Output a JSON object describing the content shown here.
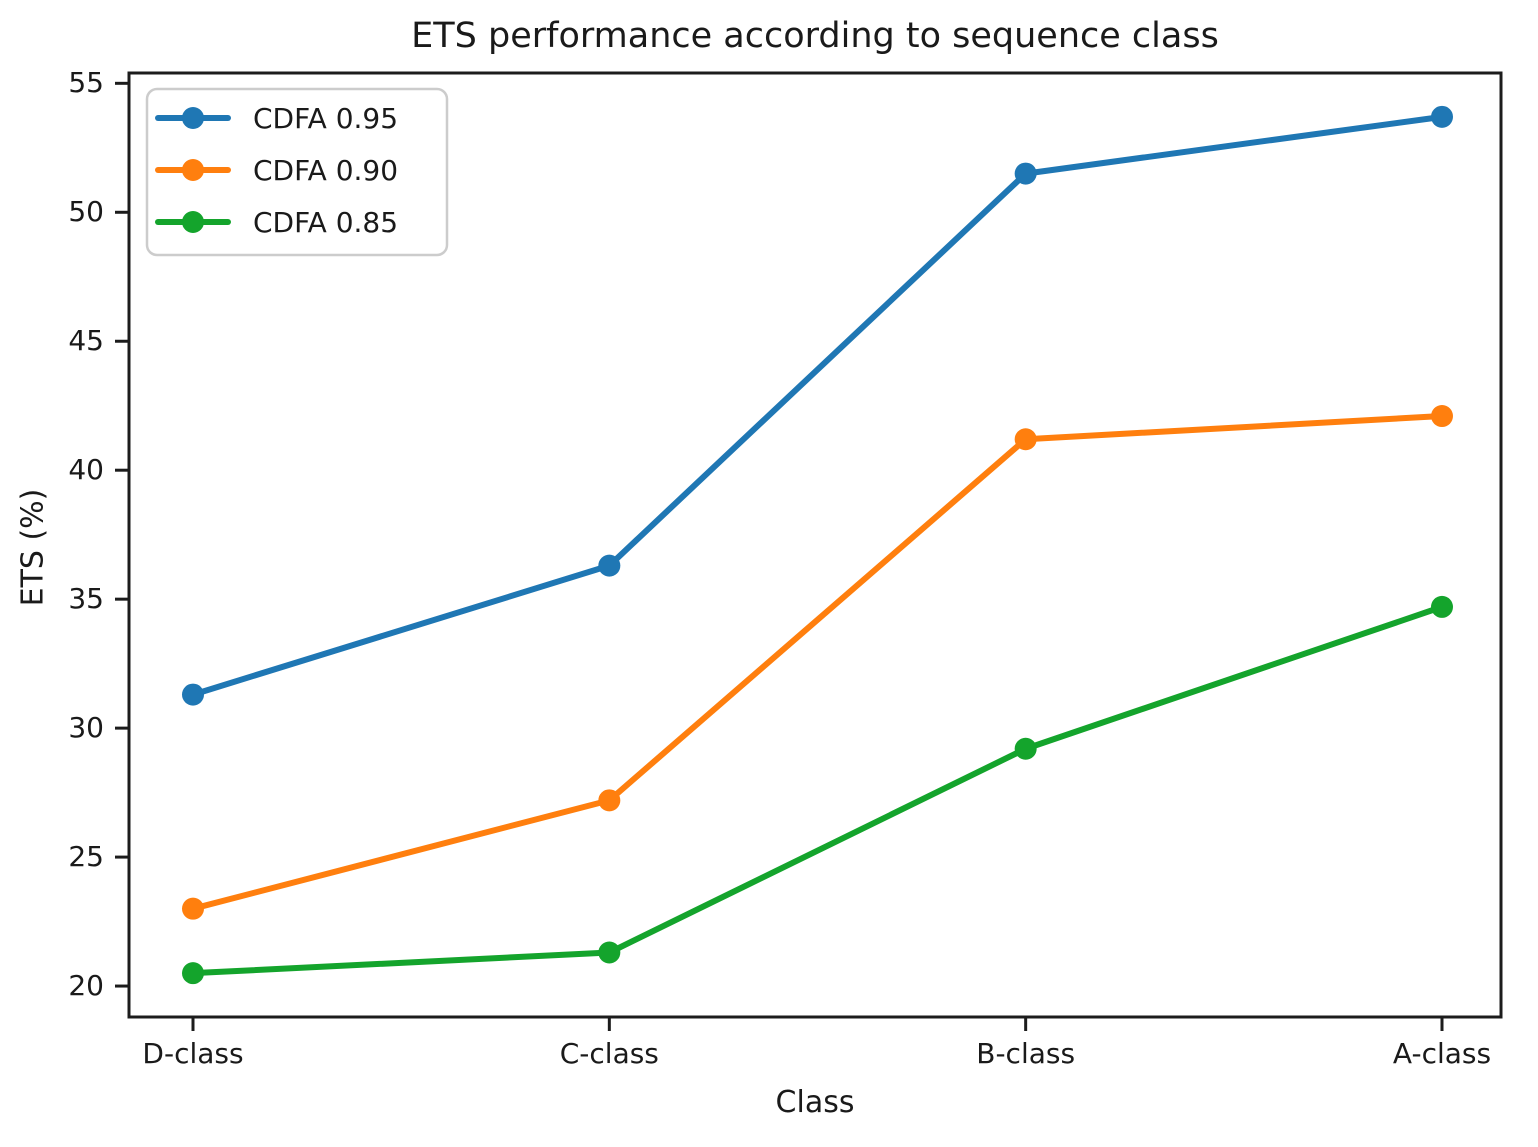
{
  "chart_data": {
    "type": "line",
    "title": "ETS performance according to sequence class",
    "xlabel": "Class",
    "ylabel": "ETS (%)",
    "categories": [
      "D-class",
      "C-class",
      "B-class",
      "A-class"
    ],
    "series": [
      {
        "name": "CDFA 0.95",
        "color": "#1f77b4",
        "values": [
          31.3,
          36.3,
          51.5,
          53.7
        ]
      },
      {
        "name": "CDFA 0.90",
        "color": "#ff7f0e",
        "values": [
          23.0,
          27.2,
          41.2,
          42.1
        ]
      },
      {
        "name": "CDFA 0.85",
        "color": "#14a42c",
        "values": [
          20.5,
          21.3,
          29.2,
          34.7
        ]
      }
    ],
    "yticks": [
      20,
      25,
      30,
      35,
      40,
      45,
      50,
      55
    ],
    "ylim": [
      18.8,
      55.4
    ],
    "grid": false,
    "marker": "circle",
    "legend_position": "upper left",
    "spine_color": "#1c1c1c",
    "text_color": "#1a1a1a",
    "legend_border_color": "#cccccc",
    "background_color": "#ffffff"
  }
}
